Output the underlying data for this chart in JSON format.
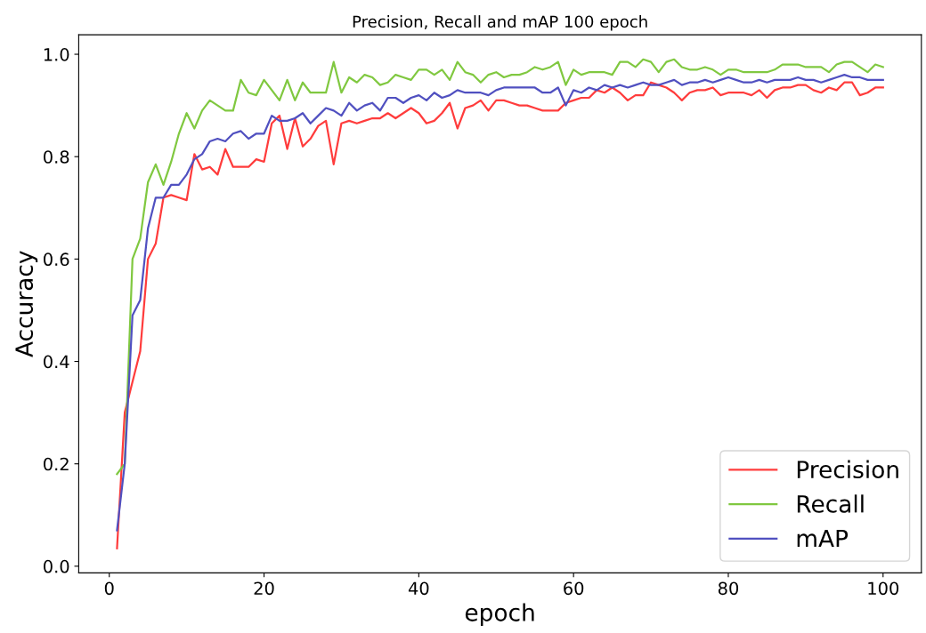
{
  "chart_data": {
    "type": "line",
    "title": "Precision, Recall and mAP 100 epoch",
    "xlabel": "epoch",
    "ylabel": "Accuracy",
    "x": [
      1,
      2,
      3,
      4,
      5,
      6,
      7,
      8,
      9,
      10,
      11,
      12,
      13,
      14,
      15,
      16,
      17,
      18,
      19,
      20,
      21,
      22,
      23,
      24,
      25,
      26,
      27,
      28,
      29,
      30,
      31,
      32,
      33,
      34,
      35,
      36,
      37,
      38,
      39,
      40,
      41,
      42,
      43,
      44,
      45,
      46,
      47,
      48,
      49,
      50,
      51,
      52,
      53,
      54,
      55,
      56,
      57,
      58,
      59,
      60,
      61,
      62,
      63,
      64,
      65,
      66,
      67,
      68,
      69,
      70,
      71,
      72,
      73,
      74,
      75,
      76,
      77,
      78,
      79,
      80,
      81,
      82,
      83,
      84,
      85,
      86,
      87,
      88,
      89,
      90,
      91,
      92,
      93,
      94,
      95,
      96,
      97,
      98,
      99,
      100
    ],
    "series": [
      {
        "name": "Precision",
        "color": "#ff3c3c",
        "values": [
          0.035,
          0.3,
          0.36,
          0.42,
          0.6,
          0.63,
          0.72,
          0.725,
          0.72,
          0.715,
          0.805,
          0.775,
          0.78,
          0.765,
          0.815,
          0.78,
          0.78,
          0.78,
          0.795,
          0.79,
          0.865,
          0.88,
          0.815,
          0.875,
          0.82,
          0.835,
          0.86,
          0.87,
          0.785,
          0.865,
          0.87,
          0.865,
          0.87,
          0.875,
          0.875,
          0.885,
          0.875,
          0.885,
          0.895,
          0.885,
          0.865,
          0.87,
          0.885,
          0.905,
          0.855,
          0.895,
          0.9,
          0.91,
          0.89,
          0.91,
          0.91,
          0.905,
          0.9,
          0.9,
          0.895,
          0.89,
          0.89,
          0.89,
          0.905,
          0.91,
          0.915,
          0.915,
          0.93,
          0.925,
          0.935,
          0.925,
          0.91,
          0.92,
          0.92,
          0.945,
          0.94,
          0.935,
          0.925,
          0.91,
          0.925,
          0.93,
          0.93,
          0.935,
          0.92,
          0.925,
          0.925,
          0.925,
          0.92,
          0.93,
          0.915,
          0.93,
          0.935,
          0.935,
          0.94,
          0.94,
          0.93,
          0.925,
          0.935,
          0.93,
          0.945,
          0.945,
          0.92,
          0.925,
          0.935,
          0.935
        ]
      },
      {
        "name": "Recall",
        "color": "#80c840",
        "values": [
          0.18,
          0.2,
          0.6,
          0.64,
          0.75,
          0.785,
          0.745,
          0.79,
          0.845,
          0.885,
          0.855,
          0.89,
          0.91,
          0.9,
          0.89,
          0.89,
          0.95,
          0.925,
          0.92,
          0.95,
          0.93,
          0.91,
          0.95,
          0.91,
          0.945,
          0.925,
          0.925,
          0.925,
          0.985,
          0.925,
          0.955,
          0.945,
          0.96,
          0.955,
          0.94,
          0.945,
          0.96,
          0.955,
          0.95,
          0.97,
          0.97,
          0.96,
          0.97,
          0.95,
          0.985,
          0.965,
          0.96,
          0.945,
          0.96,
          0.965,
          0.955,
          0.96,
          0.96,
          0.965,
          0.975,
          0.97,
          0.975,
          0.985,
          0.94,
          0.97,
          0.96,
          0.965,
          0.965,
          0.965,
          0.96,
          0.985,
          0.985,
          0.975,
          0.99,
          0.985,
          0.965,
          0.985,
          0.99,
          0.975,
          0.97,
          0.97,
          0.975,
          0.97,
          0.96,
          0.97,
          0.97,
          0.965,
          0.965,
          0.965,
          0.965,
          0.97,
          0.98,
          0.98,
          0.98,
          0.975,
          0.975,
          0.975,
          0.965,
          0.98,
          0.985,
          0.985,
          0.975,
          0.965,
          0.98,
          0.975
        ]
      },
      {
        "name": "mAP",
        "color": "#5050c0",
        "values": [
          0.07,
          0.2,
          0.49,
          0.52,
          0.66,
          0.72,
          0.72,
          0.745,
          0.745,
          0.765,
          0.795,
          0.805,
          0.83,
          0.835,
          0.83,
          0.845,
          0.85,
          0.835,
          0.845,
          0.845,
          0.88,
          0.87,
          0.87,
          0.875,
          0.885,
          0.865,
          0.88,
          0.895,
          0.89,
          0.88,
          0.905,
          0.89,
          0.9,
          0.905,
          0.89,
          0.915,
          0.915,
          0.905,
          0.915,
          0.92,
          0.91,
          0.925,
          0.915,
          0.92,
          0.93,
          0.925,
          0.925,
          0.925,
          0.92,
          0.93,
          0.935,
          0.935,
          0.935,
          0.935,
          0.935,
          0.925,
          0.925,
          0.935,
          0.9,
          0.93,
          0.925,
          0.935,
          0.93,
          0.94,
          0.935,
          0.94,
          0.935,
          0.94,
          0.945,
          0.94,
          0.94,
          0.945,
          0.95,
          0.94,
          0.945,
          0.945,
          0.95,
          0.945,
          0.95,
          0.955,
          0.95,
          0.945,
          0.945,
          0.95,
          0.945,
          0.95,
          0.95,
          0.95,
          0.955,
          0.95,
          0.95,
          0.945,
          0.95,
          0.955,
          0.96,
          0.955,
          0.955,
          0.95,
          0.95,
          0.95
        ]
      }
    ],
    "xlim": [
      -3.95,
      104.95
    ],
    "ylim": [
      -0.013,
      1.038
    ],
    "xticks": [
      0,
      20,
      40,
      60,
      80,
      100
    ],
    "yticks": [
      {
        "value": 0,
        "label": "0.0"
      },
      {
        "value": 0.2,
        "label": "0.2"
      },
      {
        "value": 0.4,
        "label": "0.4"
      },
      {
        "value": 0.6,
        "label": "0.6"
      },
      {
        "value": 0.8,
        "label": "0.8"
      },
      {
        "value": 1.0,
        "label": "1.0"
      }
    ],
    "grid": false,
    "legend": "bottom right",
    "marker": "none",
    "line_style": "solid"
  }
}
